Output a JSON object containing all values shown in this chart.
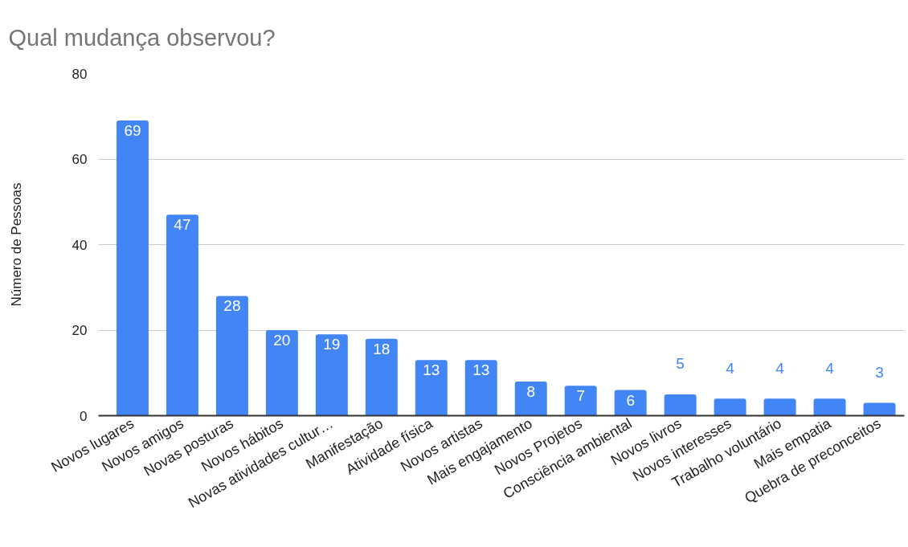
{
  "chart_data": {
    "type": "bar",
    "title": "Qual mudança observou?",
    "ylabel": "Número de Pessoas",
    "categories": [
      "Novos lugares",
      "Novos amigos",
      "Novas posturas",
      "Novos hábitos",
      "Novas atividades cultur…",
      "Manifestação",
      "Atividade física",
      "Novos artistas",
      "Mais engajamento",
      "Novos Projetos",
      "Consciência ambiental",
      "Novos livros",
      "Novos interesses",
      "Trabalho voluntário",
      "Mais empatia",
      "Quebra de preconceitos"
    ],
    "values": [
      69,
      47,
      28,
      20,
      19,
      18,
      13,
      13,
      8,
      7,
      6,
      5,
      4,
      4,
      4,
      3
    ],
    "color": "#4285f4",
    "ylim": [
      0,
      80
    ],
    "yticks": [
      0,
      20,
      40,
      60,
      80
    ],
    "grid": "y",
    "data_labels": true
  }
}
